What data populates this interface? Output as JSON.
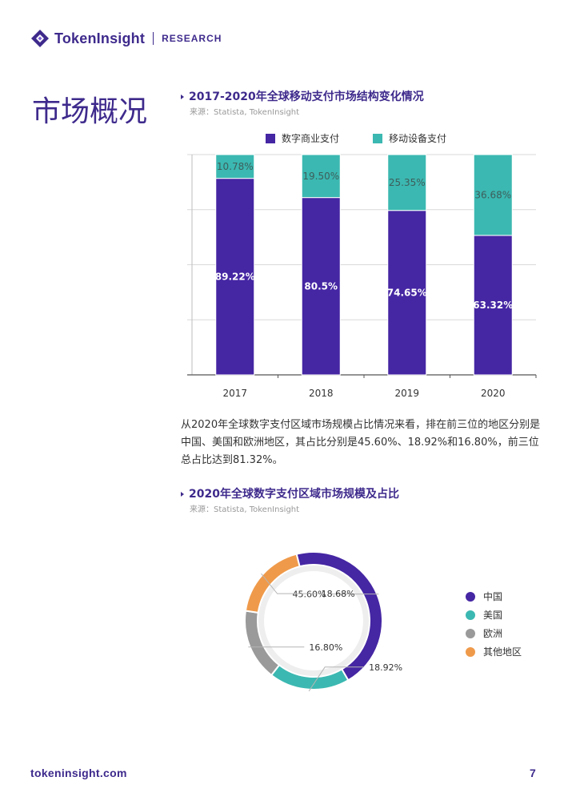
{
  "header": {
    "brand": "TokenInsight",
    "section": "RESEARCH"
  },
  "page_title": "市场概况",
  "bar_chart": {
    "title": "2017-2020年全球移动支付市场结构变化情况",
    "source": "来源：Statista, TokenInsight"
  },
  "paragraph": "从2020年全球数字支付区域市场规模占比情况来看，排在前三位的地区分别是中国、美国和欧洲地区，其占比分别是45.60%、18.92%和16.80%，前三位总占比达到81.32%。",
  "donut_chart": {
    "title": "2020年全球数字支付区域市场规模及占比",
    "source": "来源：Statista, TokenInsight"
  },
  "footer": {
    "url": "tokeninsight.com",
    "page": "7"
  },
  "chart_data": [
    {
      "type": "bar",
      "stacked": true,
      "title": "2017-2020年全球移动支付市场结构变化情况",
      "categories": [
        "2017",
        "2018",
        "2019",
        "2020"
      ],
      "series": [
        {
          "name": "数字商业支付",
          "color": "#4526a3",
          "values": [
            89.22,
            80.5,
            74.65,
            63.32
          ],
          "labels": [
            "89.22%",
            "80.5%",
            "74.65%",
            "63.32%"
          ]
        },
        {
          "name": "移动设备支付",
          "color": "#3bb8b1",
          "values": [
            10.78,
            19.5,
            25.35,
            36.68
          ],
          "labels": [
            "10.78%",
            "19.50%",
            "25.35%",
            "36.68%"
          ]
        }
      ],
      "ylim": [
        0,
        100
      ],
      "legend": "top"
    },
    {
      "type": "pie",
      "donut": true,
      "title": "2020年全球数字支付区域市场规模及占比",
      "slices": [
        {
          "name": "中国",
          "value": 45.6,
          "label": "45.60%",
          "color": "#4526a3"
        },
        {
          "name": "美国",
          "value": 18.92,
          "label": "18.92%",
          "color": "#3bb8b1"
        },
        {
          "name": "欧洲",
          "value": 16.8,
          "label": "16.80%",
          "color": "#9a9a9a"
        },
        {
          "name": "其他地区",
          "value": 18.68,
          "label": "18.68%",
          "color": "#ef9a4a"
        }
      ],
      "legend": "right"
    }
  ]
}
